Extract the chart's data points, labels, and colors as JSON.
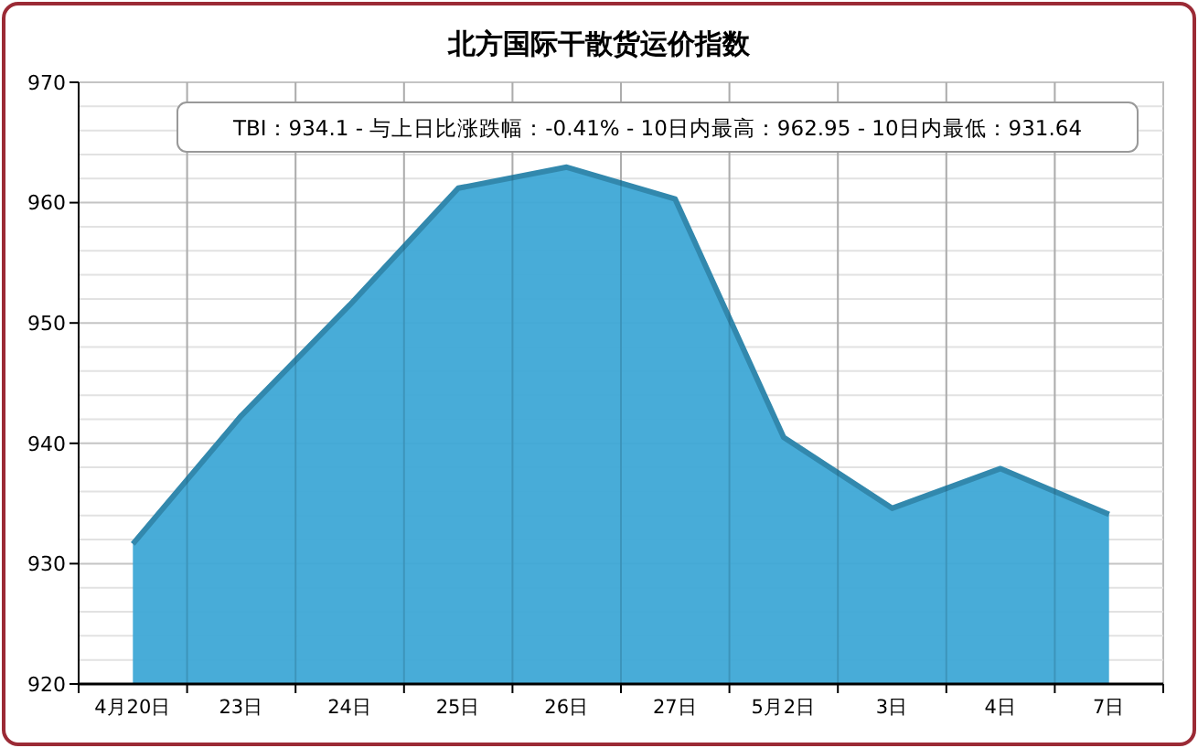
{
  "chart_data": {
    "type": "area",
    "title": "北方国际干散货运价指数",
    "categories": [
      "4月20日",
      "23日",
      "24日",
      "25日",
      "26日",
      "27日",
      "5月2日",
      "3日",
      "4日",
      "7日"
    ],
    "series": [
      {
        "color": "#3ea8d6",
        "values": [
          931.64,
          942.3,
          951.5,
          961.2,
          962.95,
          960.3,
          940.5,
          934.6,
          937.9,
          934.1
        ]
      }
    ],
    "ylim": [
      920,
      970
    ],
    "yticks": [
      920,
      {
        "value": 922,
        "label": null
      },
      {
        "value": 924,
        "label": null
      },
      {
        "value": 926,
        "label": null
      },
      {
        "value": 928,
        "label": null
      },
      930,
      {
        "value": 932,
        "label": null
      },
      {
        "value": 934,
        "label": null
      },
      {
        "value": 936,
        "label": null
      },
      {
        "value": 938,
        "label": null
      },
      940,
      {
        "value": 942,
        "label": null
      },
      {
        "value": 944,
        "label": null
      },
      {
        "value": 946,
        "label": null
      },
      {
        "value": 948,
        "label": null
      },
      950,
      {
        "value": 952,
        "label": null
      },
      {
        "value": 954,
        "label": null
      },
      {
        "value": 956,
        "label": null
      },
      {
        "value": 958,
        "label": null
      },
      960,
      {
        "value": 962,
        "label": null
      },
      {
        "value": 964,
        "label": null
      },
      {
        "value": 966,
        "label": null
      },
      {
        "value": 968,
        "label": null
      },
      970
    ],
    "grid": true,
    "annotations": [
      "TBI：934.1 - 与上日比涨跌幅：-0.41% - 10日内最高：962.95 - 10日内最低：931.64"
    ]
  }
}
